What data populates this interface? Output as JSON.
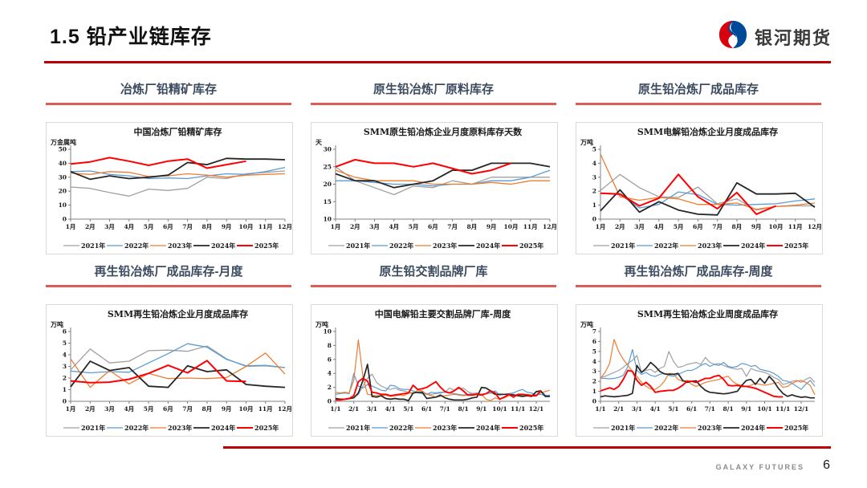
{
  "page": {
    "title": "1.5  铅产业链库存",
    "logo_text": "银河期货",
    "footer_brand": "GALAXY FUTURES",
    "page_number": "6"
  },
  "colors": {
    "accent_red": "#c00000",
    "heading_underline": "#dd5c55",
    "heading_text": "#3d4b5f",
    "y2021": "#a0a0a0",
    "y2022": "#5b9bd5",
    "y2023": "#ed7d31",
    "y2024": "#262626",
    "y2025": "#ff0000"
  },
  "section_headings": [
    "冶炼厂铅精矿库存",
    "原生铅冶炼厂原料库存",
    "原生铅冶炼厂成品库存",
    "再生铅冶炼厂成品库存-月度",
    "原生铅交割品牌厂库",
    "再生铅冶炼厂成品库存-周度"
  ],
  "chart_data": [
    {
      "type": "line",
      "title": "中国冶炼厂铅精矿库存",
      "unit": "万金属吨",
      "ylim": [
        0,
        50
      ],
      "yticks": [
        0,
        10,
        20,
        30,
        40,
        50
      ],
      "points_total": 12,
      "label_step": 1,
      "x_labels": [
        "1月",
        "2月",
        "3月",
        "4月",
        "5月",
        "6月",
        "7月",
        "8月",
        "9月",
        "10月",
        "11月",
        "12月"
      ],
      "series": [
        {
          "name": "2021年",
          "color": "#a0a0a0",
          "width": 1.3,
          "values": [
            23,
            22,
            19,
            16.5,
            21.5,
            20.5,
            22,
            30,
            29,
            32.5,
            33.5,
            34.5
          ]
        },
        {
          "name": "2022年",
          "color": "#5b9bd5",
          "width": 1.3,
          "values": [
            34,
            34.5,
            32,
            31,
            29,
            29.5,
            29,
            31,
            32.5,
            32,
            34,
            37
          ]
        },
        {
          "name": "2023年",
          "color": "#ed7d31",
          "width": 1.3,
          "values": [
            33,
            32,
            34,
            33.5,
            30.5,
            31,
            32.5,
            31.5,
            30,
            31.5,
            32,
            32.5
          ]
        },
        {
          "name": "2024年",
          "color": "#262626",
          "width": 1.8,
          "values": [
            34,
            28.5,
            31,
            29,
            30,
            31.5,
            40.5,
            39,
            43.5,
            43,
            43,
            42.5
          ]
        },
        {
          "name": "2025年",
          "color": "#ff0000",
          "width": 2,
          "values": [
            39.5,
            41,
            44,
            41.5,
            38.5,
            41.5,
            43,
            36.5,
            39,
            41.5
          ]
        }
      ]
    },
    {
      "type": "line",
      "title": "SMM原生铅冶炼企业月度原料库存天数",
      "unit": "天",
      "ylim": [
        10,
        30
      ],
      "yticks": [
        10,
        15,
        20,
        25,
        30
      ],
      "points_total": 12,
      "label_step": 1,
      "x_labels": [
        "1月",
        "2月",
        "3月",
        "4月",
        "5月",
        "6月",
        "7月",
        "8月",
        "9月",
        "10月",
        "11月",
        "12月"
      ],
      "series": [
        {
          "name": "2021年",
          "color": "#a0a0a0",
          "width": 1.3,
          "values": [
            25,
            21,
            19,
            17,
            19.5,
            19,
            21,
            20,
            22,
            22,
            22,
            22
          ]
        },
        {
          "name": "2022年",
          "color": "#5b9bd5",
          "width": 1.3,
          "values": [
            21,
            21,
            20.5,
            20,
            20,
            19.5,
            20,
            20,
            21,
            21,
            22,
            24
          ]
        },
        {
          "name": "2023年",
          "color": "#ed7d31",
          "width": 1.3,
          "values": [
            24,
            22,
            21,
            21,
            21,
            20,
            20,
            20,
            20.5,
            20,
            21,
            21
          ]
        },
        {
          "name": "2024年",
          "color": "#262626",
          "width": 1.8,
          "values": [
            23,
            21,
            21,
            19,
            20,
            21,
            24,
            24,
            26,
            26,
            26,
            25
          ]
        },
        {
          "name": "2025年",
          "color": "#ff0000",
          "width": 2,
          "values": [
            25,
            27,
            26,
            26,
            25,
            26,
            24.5,
            23,
            24,
            26
          ]
        }
      ]
    },
    {
      "type": "line",
      "title": "SMM电解铅冶炼企业月度成品库存",
      "unit": "万吨",
      "ylim": [
        0,
        5
      ],
      "yticks": [
        0,
        1,
        2,
        3,
        4,
        5
      ],
      "points_total": 12,
      "label_step": 1,
      "x_labels": [
        "1月",
        "2月",
        "3月",
        "4月",
        "5月",
        "6月",
        "7月",
        "8月",
        "9月",
        "10月",
        "11月",
        "12月"
      ],
      "series": [
        {
          "name": "2021年",
          "color": "#a0a0a0",
          "width": 1.3,
          "values": [
            2.05,
            3.2,
            2.25,
            1.6,
            1.55,
            2.3,
            1.1,
            1.45,
            0.65,
            0.9,
            0.95,
            0.95
          ]
        },
        {
          "name": "2022年",
          "color": "#5b9bd5",
          "width": 1.3,
          "values": [
            1.85,
            1.75,
            0.8,
            1.05,
            1.95,
            1.75,
            1.05,
            1.0,
            1.05,
            1.1,
            1.3,
            1.45
          ]
        },
        {
          "name": "2023年",
          "color": "#ed7d31",
          "width": 1.3,
          "values": [
            4.65,
            1.6,
            1.35,
            1.55,
            1.45,
            1.05,
            1.05,
            1.15,
            0.7,
            0.9,
            1.0,
            1.15
          ]
        },
        {
          "name": "2024年",
          "color": "#262626",
          "width": 1.8,
          "values": [
            0.6,
            2.1,
            0.5,
            1.25,
            0.65,
            0.35,
            0.3,
            2.6,
            1.8,
            1.8,
            1.85,
            0.85
          ]
        },
        {
          "name": "2025年",
          "color": "#ff0000",
          "width": 2,
          "values": [
            1.85,
            1.8,
            0.95,
            1.5,
            3.2,
            1.6,
            0.75,
            1.9,
            0.35,
            0.95
          ]
        }
      ]
    },
    {
      "type": "line",
      "title": "SMM再生铅冶炼企业月度成品库存",
      "unit": "万吨",
      "ylim": [
        0,
        6
      ],
      "yticks": [
        0,
        1,
        2,
        3,
        4,
        5,
        6
      ],
      "points_total": 12,
      "label_step": 1,
      "x_labels": [
        "1月",
        "2月",
        "3月",
        "4月",
        "5月",
        "6月",
        "7月",
        "8月",
        "9月",
        "10月",
        "11月",
        "12月"
      ],
      "series": [
        {
          "name": "2021年",
          "color": "#a0a0a0",
          "width": 1.3,
          "values": [
            2.7,
            4.5,
            3.3,
            3.45,
            4.35,
            4.4,
            4.3,
            4.75,
            3.65,
            3.0,
            3.05,
            2.9
          ]
        },
        {
          "name": "2022年",
          "color": "#5b9bd5",
          "width": 1.3,
          "values": [
            2.6,
            2.45,
            2.55,
            2.5,
            3.3,
            4.1,
            4.95,
            4.65,
            3.6,
            3.05,
            3.1,
            2.9
          ]
        },
        {
          "name": "2023年",
          "color": "#ed7d31",
          "width": 1.3,
          "values": [
            3.65,
            1.2,
            2.65,
            1.5,
            2.4,
            1.95,
            2.0,
            1.95,
            2.05,
            3.0,
            4.15,
            2.35
          ]
        },
        {
          "name": "2024年",
          "color": "#262626",
          "width": 1.8,
          "values": [
            1.25,
            3.45,
            2.65,
            2.9,
            1.3,
            1.2,
            3.05,
            2.55,
            2.7,
            1.45,
            1.3,
            1.2
          ]
        },
        {
          "name": "2025年",
          "color": "#ff0000",
          "width": 2,
          "values": [
            1.75,
            1.6,
            1.65,
            1.9,
            2.4,
            3.1,
            2.45,
            3.5,
            1.75,
            1.7
          ]
        }
      ]
    },
    {
      "type": "line",
      "title": "中国电解铅主要交割品牌厂库-周度",
      "unit": "万吨",
      "ylim": [
        0,
        10
      ],
      "yticks": [
        0,
        2,
        4,
        6,
        8,
        10
      ],
      "points_total": 48,
      "label_step": 4,
      "x_labels": [
        "1/1",
        "2/1",
        "3/1",
        "4/1",
        "5/1",
        "6/1",
        "7/1",
        "8/1",
        "9/1",
        "10/1",
        "11/1",
        "12/1"
      ],
      "series": [
        {
          "name": "2021年",
          "color": "#a0a0a0",
          "width": 1.2,
          "values": [
            0.25,
            0.2,
            0.3,
            0.35,
            0.5,
            1.0,
            2.2,
            3.3,
            3.9,
            2.7,
            2.2,
            1.9,
            1.7,
            1.9,
            1.6,
            1.5,
            1.3,
            1.2,
            1.3,
            1.2,
            1.1,
            1.0,
            1.1,
            1.2,
            1.3,
            1.9,
            1.6,
            1.8,
            1.9,
            1.4,
            1.1,
            1.0,
            1.0,
            1.1,
            1.2,
            1.0,
            0.9,
            1.0,
            1.1,
            1.0,
            0.9,
            0.9,
            1.0,
            0.9,
            1.3,
            1.5,
            0.9,
            0.8
          ]
        },
        {
          "name": "2022年",
          "color": "#5b9bd5",
          "width": 1.2,
          "values": [
            1.0,
            1.1,
            1.2,
            1.1,
            4.0,
            2.2,
            1.9,
            2.4,
            2.2,
            1.9,
            1.6,
            1.5,
            2.3,
            2.2,
            1.8,
            1.7,
            1.7,
            1.5,
            1.2,
            1.1,
            1.0,
            1.3,
            1.2,
            1.3,
            1.3,
            1.2,
            1.1,
            1.0,
            0.9,
            1.0,
            1.1,
            1.2,
            1.0,
            1.1,
            1.2,
            1.5,
            0.9,
            1.0,
            1.1,
            1.2,
            1.5,
            1.7,
            1.3,
            1.2,
            0.9,
            1.0,
            0.8,
            0.9
          ]
        },
        {
          "name": "2023年",
          "color": "#ed7d31",
          "width": 1.2,
          "values": [
            1.3,
            1.2,
            1.3,
            1.2,
            3.0,
            8.8,
            3.5,
            1.0,
            0.9,
            0.8,
            0.8,
            0.9,
            0.7,
            0.8,
            0.9,
            0.8,
            1.2,
            1.1,
            1.6,
            1.5,
            1.0,
            0.8,
            0.6,
            0.7,
            0.8,
            0.9,
            1.0,
            0.9,
            0.8,
            0.9,
            1.0,
            1.1,
            1.0,
            0.3,
            0.1,
            0.5,
            0.3,
            0.5,
            0.8,
            0.9,
            0.8,
            0.9,
            1.0,
            0.8,
            0.9,
            1.2,
            1.4,
            1.6
          ]
        },
        {
          "name": "2024年",
          "color": "#262626",
          "width": 1.7,
          "values": [
            0.4,
            0.3,
            0.3,
            0.4,
            0.5,
            1.2,
            3.0,
            5.3,
            0.7,
            0.6,
            0.8,
            0.4,
            0.3,
            0.4,
            0.3,
            0.3,
            0.1,
            1.2,
            1.3,
            1.3,
            0.4,
            0.5,
            0.6,
            0.9,
            0.5,
            0.3,
            0.2,
            0.2,
            0.2,
            0.3,
            0.5,
            0.6,
            2.0,
            1.9,
            1.5,
            1.0,
            1.0,
            1.0,
            1.0,
            0.9,
            0.8,
            0.7,
            0.8,
            0.7,
            1.4,
            1.5,
            0.7,
            0.7
          ]
        },
        {
          "name": "2025年",
          "color": "#ff0000",
          "width": 1.9,
          "values": [
            0.2,
            0.2,
            0.3,
            0.4,
            0.8,
            2.8,
            3.3,
            2.9,
            1.3,
            1.2,
            1.0,
            1.0,
            0.8,
            0.9,
            1.0,
            1.1,
            1.2,
            2.3,
            1.7,
            1.8,
            2.0,
            2.4,
            2.8,
            2.0,
            1.4,
            1.2,
            1.5,
            2.0,
            1.5,
            0.9,
            0.9,
            1.0,
            0.9,
            1.1,
            1.5,
            1.2,
            0.3,
            0.6,
            1.0,
            0.6,
            1.0,
            1.0,
            0.9,
            0.8,
            0.8,
            1.5
          ]
        }
      ]
    },
    {
      "type": "line",
      "title": "SMM再生铅冶炼企业周度成品库存",
      "unit": "万吨",
      "ylim": [
        0,
        7
      ],
      "yticks": [
        0,
        1,
        2,
        3,
        4,
        5,
        6,
        7
      ],
      "points_total": 48,
      "label_step": 4,
      "x_labels": [
        "1/1",
        "2/1",
        "3/1",
        "4/1",
        "5/1",
        "6/1",
        "7/1",
        "8/1",
        "9/1",
        "10/1",
        "11/1",
        "12/1"
      ],
      "series": [
        {
          "name": "2021年",
          "color": "#a0a0a0",
          "width": 1.2,
          "values": [
            2.4,
            2.5,
            2.7,
            2.9,
            3.1,
            3.4,
            3.8,
            4.1,
            4.6,
            2.9,
            3.1,
            3.2,
            2.9,
            3.3,
            3.5,
            5.0,
            4.0,
            3.4,
            3.5,
            3.7,
            3.8,
            3.9,
            3.7,
            4.4,
            3.9,
            3.7,
            3.8,
            3.6,
            3.4,
            3.3,
            3.2,
            3.3,
            2.5,
            3.3,
            3.1,
            3.0,
            2.9,
            2.7,
            2.4,
            2.2,
            1.7,
            1.8,
            2.0,
            2.1,
            1.9,
            2.2,
            2.4,
            1.9
          ]
        },
        {
          "name": "2022年",
          "color": "#5b9bd5",
          "width": 1.2,
          "values": [
            2.3,
            2.3,
            2.25,
            2.3,
            2.4,
            2.6,
            3.5,
            5.2,
            3.1,
            2.7,
            2.9,
            2.6,
            2.5,
            2.7,
            2.8,
            2.6,
            2.5,
            2.7,
            2.9,
            3.1,
            3.1,
            3.3,
            3.6,
            3.8,
            3.5,
            3.7,
            3.6,
            3.9,
            3.5,
            3.4,
            3.5,
            3.8,
            3.7,
            3.5,
            3.6,
            3.2,
            3.1,
            3.0,
            2.8,
            2.5,
            2.1,
            2.0,
            1.8,
            1.5,
            1.2,
            1.7,
            2.1,
            1.5
          ]
        },
        {
          "name": "2023年",
          "color": "#ed7d31",
          "width": 1.2,
          "values": [
            2.3,
            2.9,
            3.8,
            6.2,
            5.0,
            4.2,
            3.6,
            3.0,
            2.5,
            1.9,
            1.5,
            1.25,
            1.2,
            1.5,
            2.0,
            2.8,
            2.75,
            2.2,
            2.0,
            2.1,
            1.7,
            1.5,
            1.7,
            1.9,
            2.0,
            2.1,
            2.2,
            2.4,
            2.5,
            2.0,
            1.7,
            1.6,
            1.5,
            1.6,
            1.8,
            1.7,
            1.6,
            1.7,
            1.8,
            1.9,
            1.4,
            1.5,
            1.8,
            2.0,
            2.1,
            1.9,
            1.6,
            0.65
          ]
        },
        {
          "name": "2024年",
          "color": "#262626",
          "width": 1.7,
          "values": [
            0.45,
            0.55,
            0.5,
            0.45,
            0.5,
            0.55,
            0.6,
            0.8,
            3.6,
            2.9,
            3.3,
            3.9,
            3.5,
            3.0,
            2.75,
            2.7,
            2.7,
            2.8,
            2.1,
            1.9,
            2.0,
            2.05,
            1.5,
            1.1,
            0.9,
            0.85,
            0.8,
            0.75,
            0.8,
            0.9,
            1.0,
            1.6,
            2.1,
            2.2,
            1.7,
            2.3,
            1.8,
            2.5,
            2.0,
            1.3,
            0.8,
            0.5,
            0.65,
            0.5,
            0.4,
            0.45,
            0.35,
            0.35
          ]
        },
        {
          "name": "2025年",
          "color": "#ff0000",
          "width": 1.9,
          "values": [
            1.05,
            1.2,
            1.35,
            1.2,
            1.5,
            2.2,
            3.1,
            3.0,
            2.1,
            1.6,
            1.9,
            1.5,
            0.9,
            1.0,
            1.05,
            1.1,
            1.1,
            1.3,
            1.6,
            2.0,
            2.0,
            1.9,
            2.1,
            2.3,
            2.3,
            2.5,
            2.6,
            2.2,
            1.6,
            1.55,
            1.6,
            1.5,
            1.5,
            1.4,
            1.3,
            1.1,
            0.9,
            0.7,
            0.5,
            0.45,
            0.45
          ]
        }
      ]
    }
  ]
}
